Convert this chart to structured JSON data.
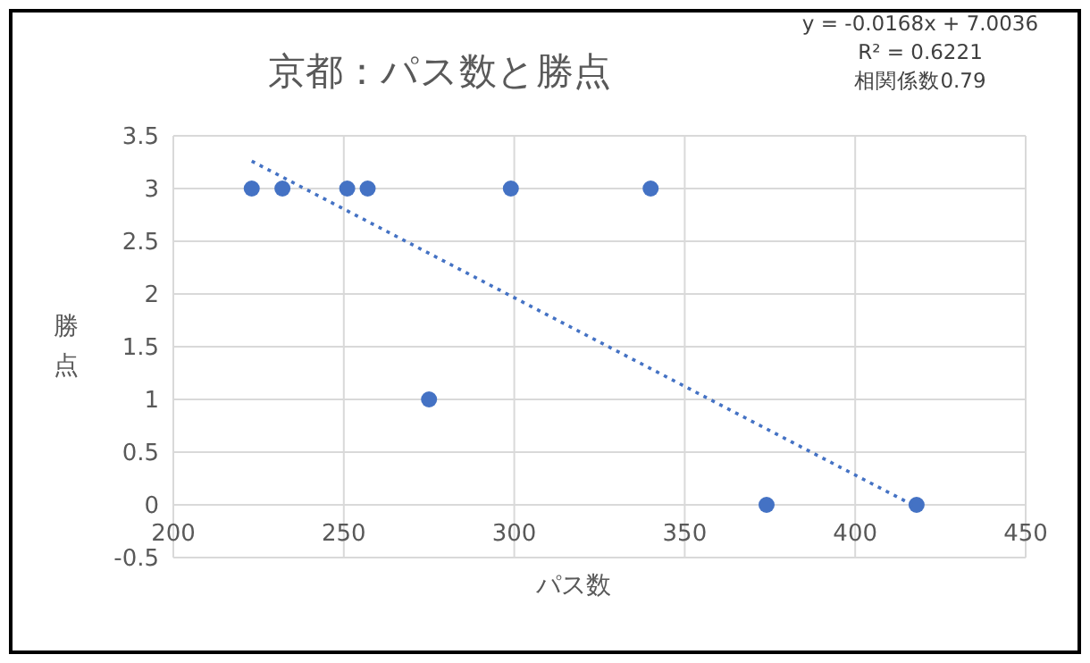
{
  "chart_data": {
    "type": "scatter",
    "title": "京都：パス数と勝点",
    "xlabel": "パス数",
    "ylabel": "勝点",
    "annotations": [
      "y = -0.0168x + 7.0036",
      "R² = 0.6221",
      "相関係数0.79"
    ],
    "series": [
      {
        "color": "#4472c4",
        "x": [
          223,
          232,
          251,
          257,
          299,
          340,
          275,
          374,
          418
        ],
        "values": [
          3,
          3,
          3,
          3,
          3,
          3,
          1,
          0,
          0
        ],
        "marker": "circle"
      },
      {
        "type": "line",
        "color": "#4472c4",
        "x": [
          223,
          418
        ],
        "values": [
          3.26,
          -0.02
        ],
        "line_style": "dotted",
        "marker": "none"
      }
    ],
    "xlim": [
      200,
      450
    ],
    "xticks": [
      200,
      250,
      300,
      350,
      400,
      450
    ],
    "ylim": [
      -0.5,
      3.5
    ],
    "yticks": [
      -0.5,
      0,
      0.5,
      1,
      1.5,
      2,
      2.5,
      3,
      3.5
    ],
    "grid": true
  }
}
